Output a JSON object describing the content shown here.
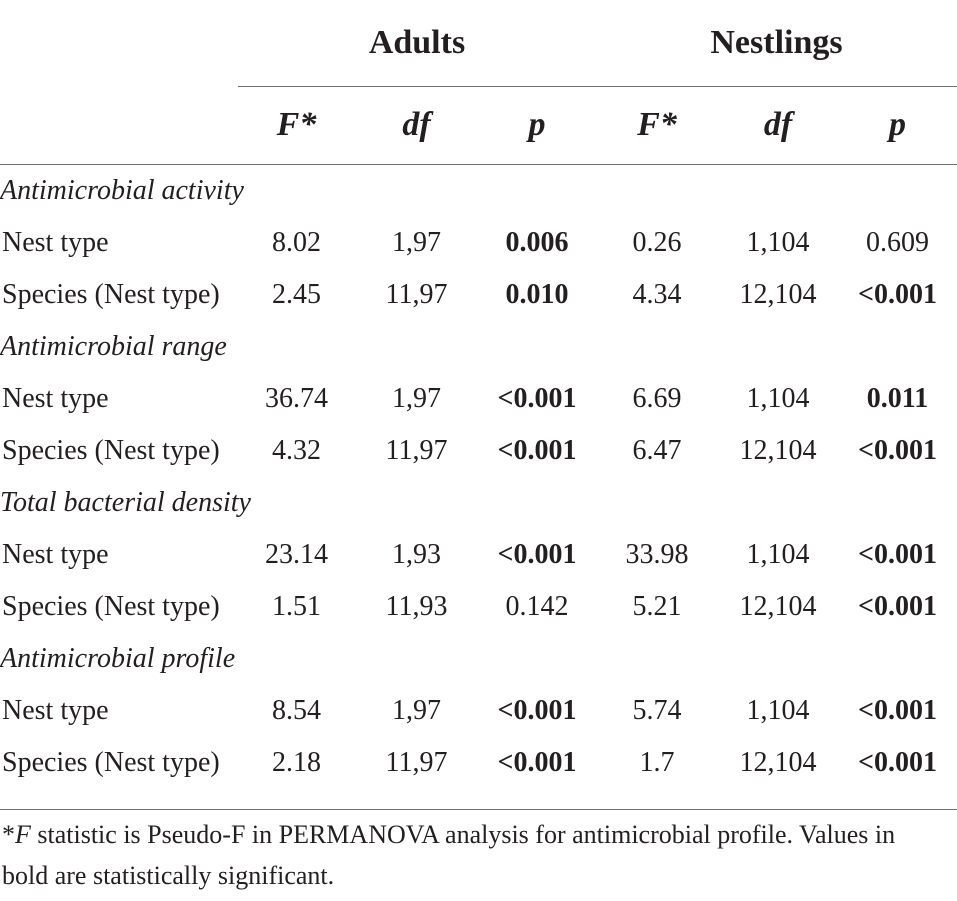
{
  "table": {
    "group_headers": {
      "adults": "Adults",
      "nestlings": "Nestlings"
    },
    "column_headers": {
      "adults": {
        "f": "F*",
        "df": "df",
        "p": "p"
      },
      "nestlings": {
        "f": "F*",
        "df": "df",
        "p": "p"
      }
    },
    "sections": [
      {
        "title": "Antimicrobial activity",
        "rows": [
          {
            "label": "Nest type",
            "adults": {
              "f": "8.02",
              "df": "1,97",
              "p": "0.006",
              "p_bold": true
            },
            "nestlings": {
              "f": "0.26",
              "df": "1,104",
              "p": "0.609",
              "p_bold": false
            }
          },
          {
            "label": "Species (Nest type)",
            "adults": {
              "f": "2.45",
              "df": "11,97",
              "p": "0.010",
              "p_bold": true
            },
            "nestlings": {
              "f": "4.34",
              "df": "12,104",
              "p": "<0.001",
              "p_bold": true
            }
          }
        ]
      },
      {
        "title": "Antimicrobial range",
        "rows": [
          {
            "label": "Nest type",
            "adults": {
              "f": "36.74",
              "df": "1,97",
              "p": "<0.001",
              "p_bold": true
            },
            "nestlings": {
              "f": "6.69",
              "df": "1,104",
              "p": "0.011",
              "p_bold": true
            }
          },
          {
            "label": "Species (Nest type)",
            "adults": {
              "f": "4.32",
              "df": "11,97",
              "p": "<0.001",
              "p_bold": true
            },
            "nestlings": {
              "f": "6.47",
              "df": "12,104",
              "p": "<0.001",
              "p_bold": true
            }
          }
        ]
      },
      {
        "title": "Total bacterial density",
        "rows": [
          {
            "label": "Nest type",
            "adults": {
              "f": "23.14",
              "df": "1,93",
              "p": "<0.001",
              "p_bold": true
            },
            "nestlings": {
              "f": "33.98",
              "df": "1,104",
              "p": "<0.001",
              "p_bold": true
            }
          },
          {
            "label": "Species (Nest type)",
            "adults": {
              "f": "1.51",
              "df": "11,93",
              "p": "0.142",
              "p_bold": false
            },
            "nestlings": {
              "f": "5.21",
              "df": "12,104",
              "p": "<0.001",
              "p_bold": true
            }
          }
        ]
      },
      {
        "title": "Antimicrobial profile",
        "rows": [
          {
            "label": "Nest type",
            "adults": {
              "f": "8.54",
              "df": "1,97",
              "p": "<0.001",
              "p_bold": true
            },
            "nestlings": {
              "f": "5.74",
              "df": "1,104",
              "p": "<0.001",
              "p_bold": true
            }
          },
          {
            "label": "Species (Nest type)",
            "adults": {
              "f": "2.18",
              "df": "11,97",
              "p": "<0.001",
              "p_bold": true
            },
            "nestlings": {
              "f": "1.7",
              "df": "12,104",
              "p": "<0.001",
              "p_bold": true
            }
          }
        ]
      }
    ],
    "footnote": {
      "marker": "*",
      "symbol": "F",
      "text": "statistic is Pseudo-F in PERMANOVA analysis for antimicrobial profile. Values in bold are statistically significant."
    }
  }
}
